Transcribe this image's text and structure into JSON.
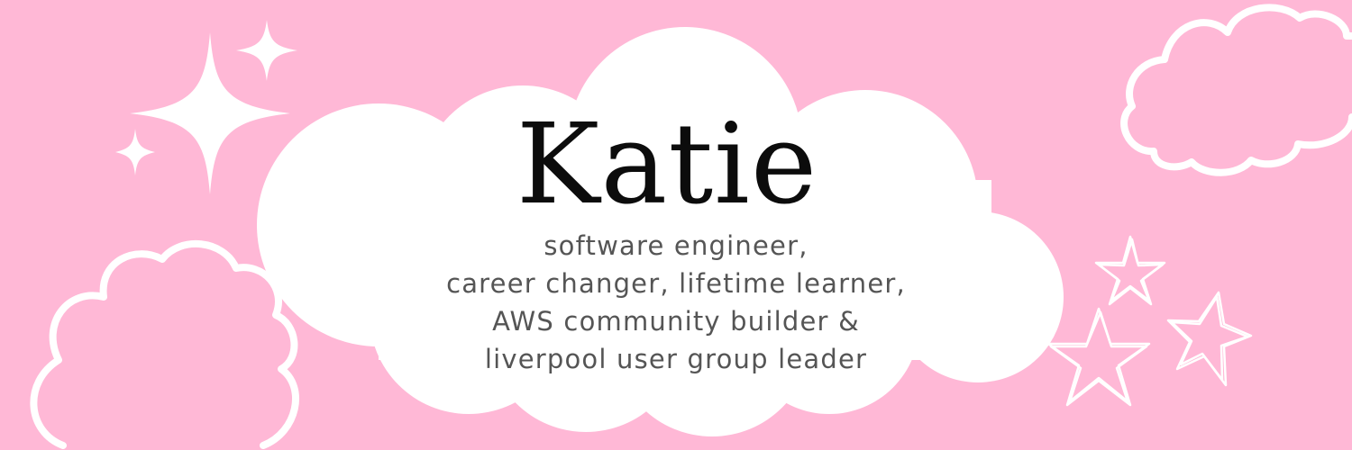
{
  "banner": {
    "name": "Katie",
    "tagline": [
      "software engineer,",
      "career changer, lifetime learner,",
      "AWS community builder &",
      "liverpool user group leader"
    ]
  },
  "colors": {
    "background": "#ffb8d6",
    "cloud": "#ffffff",
    "name_text": "#0c0c0c",
    "tagline_text": "#555555"
  },
  "decorations": {
    "icons": [
      "sparkle-icon",
      "cloud-outline-icon",
      "hand-drawn-star-icon"
    ]
  }
}
